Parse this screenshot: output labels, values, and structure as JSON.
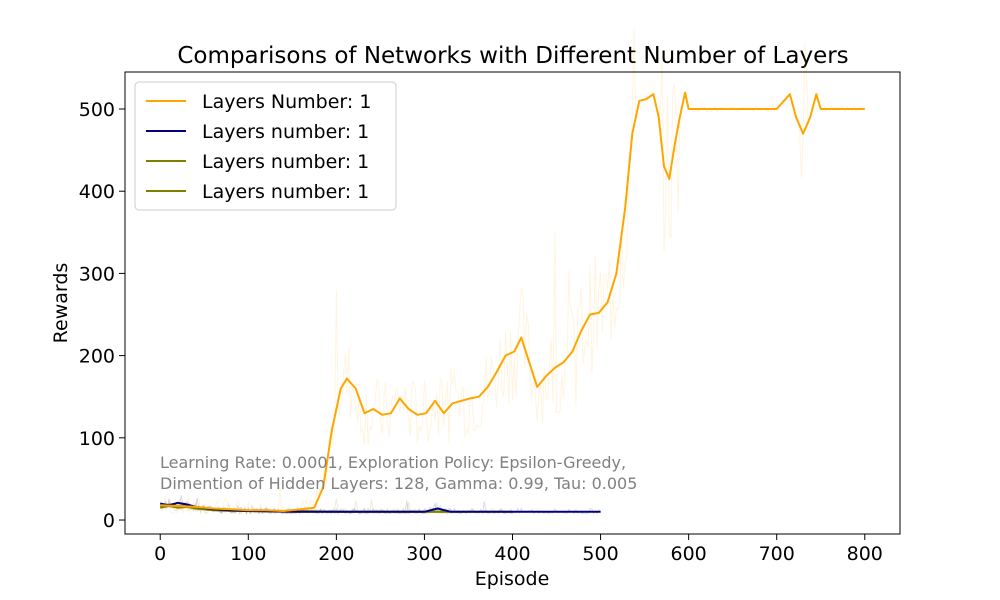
{
  "chart_data": {
    "type": "line",
    "title": "Comparisons of Networks with Different Number of Layers",
    "xlabel": "Episode",
    "ylabel": "Rewards",
    "xlim": [
      -40,
      840
    ],
    "ylim": [
      -17,
      545
    ],
    "xticks": [
      0,
      100,
      200,
      300,
      400,
      500,
      600,
      700,
      800
    ],
    "yticks": [
      0,
      100,
      200,
      300,
      400,
      500
    ],
    "grid": false,
    "legend_position": "top-left",
    "annotation": [
      "Learning Rate: 0.0001, Exploration Policy: Epsilon-Greedy,",
      "Dimention of Hidden Layers: 128, Gamma: 0.99, Tau: 0.005"
    ],
    "series": [
      {
        "name": "Layers Number: 1",
        "color": "#ffa500",
        "x": [
          0,
          20,
          40,
          60,
          80,
          100,
          120,
          140,
          160,
          175,
          185,
          195,
          205,
          212,
          222,
          232,
          242,
          252,
          262,
          272,
          282,
          292,
          302,
          312,
          322,
          332,
          342,
          352,
          362,
          372,
          382,
          392,
          402,
          410,
          418,
          428,
          438,
          448,
          458,
          468,
          478,
          488,
          498,
          508,
          518,
          528,
          536,
          544,
          552,
          560,
          566,
          572,
          578,
          584,
          590,
          596,
          600,
          650,
          700,
          715,
          722,
          730,
          738,
          745,
          750,
          800
        ],
        "values": [
          18,
          17,
          16,
          14,
          13,
          12,
          12,
          11,
          13,
          15,
          40,
          110,
          160,
          172,
          160,
          130,
          135,
          128,
          130,
          148,
          135,
          128,
          130,
          145,
          130,
          142,
          145,
          148,
          150,
          162,
          180,
          200,
          205,
          222,
          195,
          162,
          175,
          185,
          192,
          205,
          230,
          250,
          252,
          265,
          300,
          380,
          470,
          510,
          512,
          518,
          490,
          430,
          415,
          455,
          490,
          520,
          500,
          500,
          500,
          518,
          490,
          470,
          490,
          518,
          500,
          500
        ]
      },
      {
        "name": "Layers number: 1",
        "color": "#000080",
        "x": [
          0,
          10,
          20,
          30,
          40,
          60,
          80,
          100,
          150,
          200,
          250,
          300,
          315,
          330,
          400,
          450,
          500
        ],
        "values": [
          20,
          18,
          21,
          19,
          16,
          13,
          12,
          11,
          10,
          10,
          10,
          10,
          14,
          10,
          10,
          10,
          10
        ]
      },
      {
        "name": "Layers number: 1",
        "color": "#808000",
        "x": [
          0,
          10,
          20,
          30,
          40,
          60,
          80,
          100,
          150,
          200,
          250,
          300,
          330
        ],
        "values": [
          15,
          17,
          15,
          16,
          14,
          12,
          11,
          11,
          10,
          10,
          10,
          10,
          10
        ]
      },
      {
        "name": "Layers number: 1",
        "color": "#808000",
        "x": [
          0,
          10,
          20,
          30,
          40,
          60,
          80,
          100,
          150,
          200,
          250,
          300,
          350,
          400
        ],
        "values": [
          16,
          19,
          17,
          18,
          15,
          13,
          12,
          11,
          11,
          10,
          10,
          10,
          10,
          10
        ]
      }
    ]
  }
}
